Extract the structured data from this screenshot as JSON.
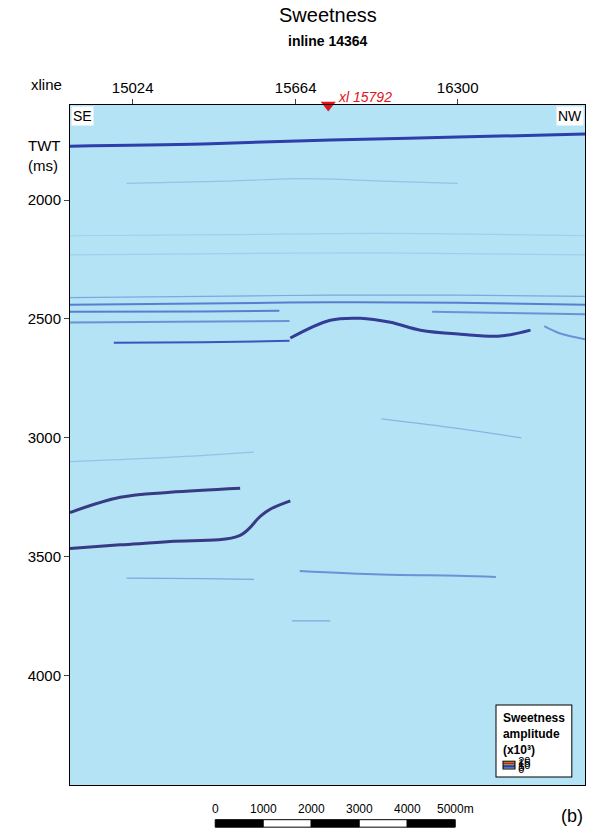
{
  "chart_data": {
    "type": "section",
    "title": "Sweetness",
    "subtitle": "inline 14364",
    "x_label": "xline",
    "y_label": "TWT (ms)",
    "xlim": [
      14778,
      16800
    ],
    "xticks": [
      15024,
      15664,
      16300
    ],
    "ylim": [
      1600,
      4460
    ],
    "yticks": [
      2000,
      2500,
      3000,
      3500,
      4000
    ],
    "corner_labels": {
      "left": "SE",
      "right": "NW"
    },
    "well": {
      "x": 15792,
      "label": "xl 15792",
      "color": "#e0141c"
    },
    "colorbar": {
      "title": "Sweetness amplitude (x10³)",
      "range": [
        0,
        20
      ],
      "ticks": [
        0,
        5,
        10,
        15,
        20
      ]
    },
    "horizons": [
      {
        "x": [
          14778,
          15300,
          15800,
          16300,
          16800
        ],
        "y": [
          1773,
          1764,
          1747,
          1735,
          1722
        ],
        "amplitude": 5.5
      },
      {
        "x": [
          15000,
          15400,
          15700,
          16000,
          16300
        ],
        "y": [
          1930,
          1920,
          1910,
          1920,
          1930
        ],
        "amplitude": 1.5
      },
      {
        "x": [
          14778,
          15400,
          16000,
          16800
        ],
        "y": [
          2150,
          2145,
          2140,
          2150
        ],
        "amplitude": 1
      },
      {
        "x": [
          14778,
          15400,
          16000,
          16800
        ],
        "y": [
          2230,
          2225,
          2222,
          2230
        ],
        "amplitude": 1
      },
      {
        "x": [
          14778,
          15300,
          15800,
          16300,
          16800
        ],
        "y": [
          2410,
          2405,
          2400,
          2400,
          2405
        ],
        "amplitude": 2.5
      },
      {
        "x": [
          14778,
          15300,
          15800,
          16300,
          16800
        ],
        "y": [
          2440,
          2435,
          2430,
          2432,
          2440
        ],
        "amplitude": 3.5
      },
      {
        "x": [
          14778,
          15300,
          15600
        ],
        "y": [
          2470,
          2468,
          2465
        ],
        "amplitude": 3.5
      },
      {
        "x": [
          16200,
          16500,
          16800
        ],
        "y": [
          2470,
          2475,
          2480
        ],
        "amplitude": 3
      },
      {
        "x": [
          14778,
          15200,
          15640
        ],
        "y": [
          2515,
          2512,
          2508
        ],
        "amplitude": 3
      },
      {
        "x": [
          14950,
          15300,
          15640
        ],
        "y": [
          2600,
          2598,
          2592
        ],
        "amplitude": 4.5
      },
      {
        "x": [
          15643,
          15800,
          15918,
          16036,
          16154,
          16311,
          16468,
          16586
        ],
        "y": [
          2580,
          2505,
          2497,
          2514,
          2547,
          2564,
          2572,
          2547
        ],
        "amplitude": 6.5
      },
      {
        "x": [
          16640,
          16700,
          16800
        ],
        "y": [
          2530,
          2560,
          2585
        ],
        "amplitude": 3
      },
      {
        "x": [
          16000,
          16300,
          16550
        ],
        "y": [
          2920,
          2960,
          3000
        ],
        "amplitude": 2
      },
      {
        "x": [
          14778,
          15200,
          15500
        ],
        "y": [
          3100,
          3080,
          3060
        ],
        "amplitude": 1.5
      },
      {
        "x": [
          14778,
          14975,
          15171,
          15446
        ],
        "y": [
          3314,
          3250,
          3229,
          3212
        ],
        "amplitude": 7.5
      },
      {
        "x": [
          14778,
          14975,
          15171,
          15446,
          15525,
          15564,
          15643
        ],
        "y": [
          3465,
          3450,
          3436,
          3410,
          3330,
          3300,
          3265
        ],
        "amplitude": 7.5
      },
      {
        "x": [
          15680,
          16000,
          16300,
          16450
        ],
        "y": [
          3560,
          3575,
          3580,
          3585
        ],
        "amplitude": 3
      },
      {
        "x": [
          15000,
          15300,
          15500
        ],
        "y": [
          3590,
          3592,
          3595
        ],
        "amplitude": 2.5
      },
      {
        "x": [
          15650,
          15800
        ],
        "y": [
          3770,
          3770
        ],
        "amplitude": 2.5
      }
    ],
    "scale_bar": {
      "range": [
        0,
        5000
      ],
      "ticks": [
        0,
        1000,
        2000,
        3000,
        4000,
        {
          "value": 5000,
          "label": "5000m"
        }
      ]
    },
    "panel": "(b)"
  }
}
